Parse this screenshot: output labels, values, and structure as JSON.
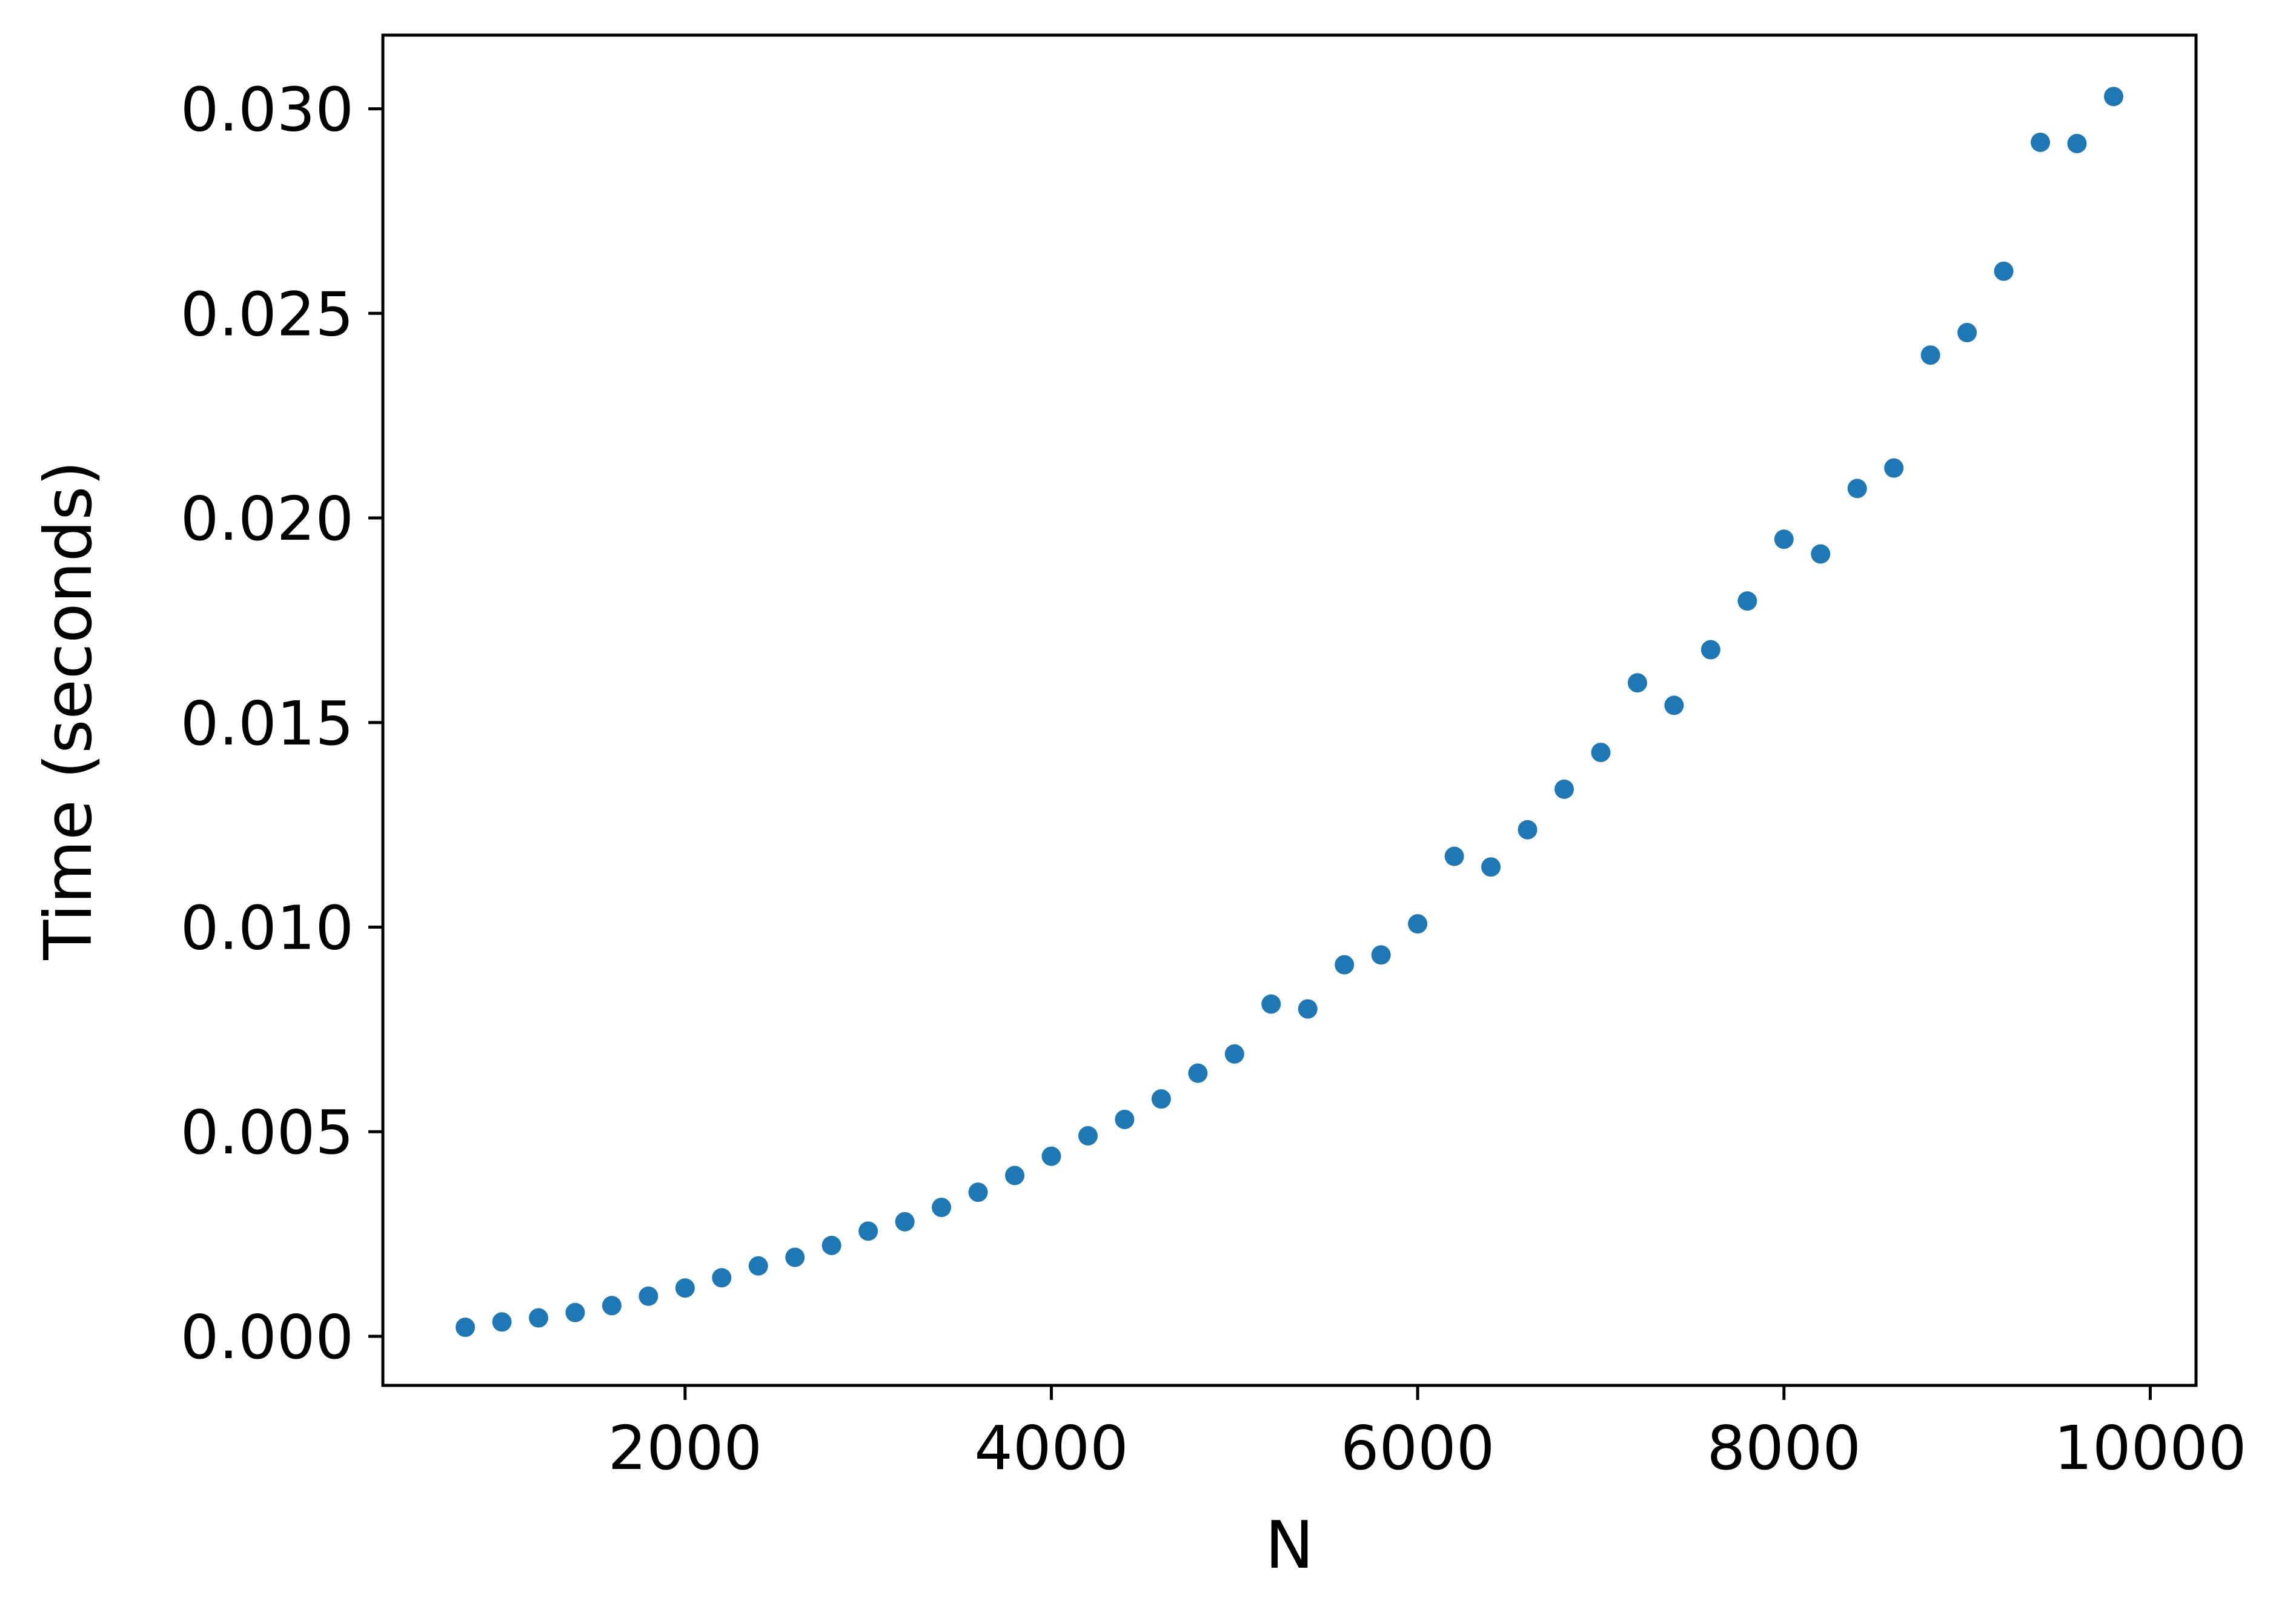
{
  "chart_data": {
    "type": "scatter",
    "title": "",
    "xlabel": "N",
    "ylabel": "Time (seconds)",
    "xlim": [
      350,
      10250
    ],
    "ylim": [
      -0.0012,
      0.0318
    ],
    "x_ticks": [
      2000,
      4000,
      6000,
      8000,
      10000
    ],
    "x_tick_labels": [
      "2000",
      "4000",
      "6000",
      "8000",
      "10000"
    ],
    "y_ticks": [
      0.0,
      0.005,
      0.01,
      0.015,
      0.02,
      0.025,
      0.03
    ],
    "y_tick_labels": [
      "0.000",
      "0.005",
      "0.010",
      "0.015",
      "0.020",
      "0.025",
      "0.030"
    ],
    "grid": false,
    "legend": "none",
    "marker_color": "#1f77b4",
    "series": [
      {
        "x": [
          800,
          1000,
          1200,
          1400,
          1600,
          1800,
          2000,
          2200,
          2400,
          2600,
          2800,
          3000,
          3200,
          3400,
          3600,
          3800,
          4000,
          4200,
          4400,
          4600,
          4800,
          5000,
          5200,
          5400,
          5600,
          5800,
          6000,
          6200,
          6400,
          6600,
          6800,
          7000,
          7200,
          7400,
          7600,
          7800,
          8000,
          8200,
          8400,
          8600,
          8800,
          9000,
          9200,
          9400,
          9600,
          9800
        ],
        "y": [
          0.00022,
          0.00035,
          0.00045,
          0.00058,
          0.00075,
          0.00098,
          0.00118,
          0.00143,
          0.00172,
          0.00193,
          0.00222,
          0.00257,
          0.0028,
          0.00315,
          0.00352,
          0.00393,
          0.0044,
          0.0049,
          0.0053,
          0.0058,
          0.00643,
          0.0069,
          0.00812,
          0.008,
          0.00908,
          0.00932,
          0.01008,
          0.01173,
          0.01147,
          0.01238,
          0.01337,
          0.01427,
          0.01597,
          0.01542,
          0.01678,
          0.01797,
          0.01948,
          0.01912,
          0.02072,
          0.02122,
          0.02398,
          0.02453,
          0.02603,
          0.02918,
          0.02915,
          0.0303
        ]
      }
    ]
  }
}
